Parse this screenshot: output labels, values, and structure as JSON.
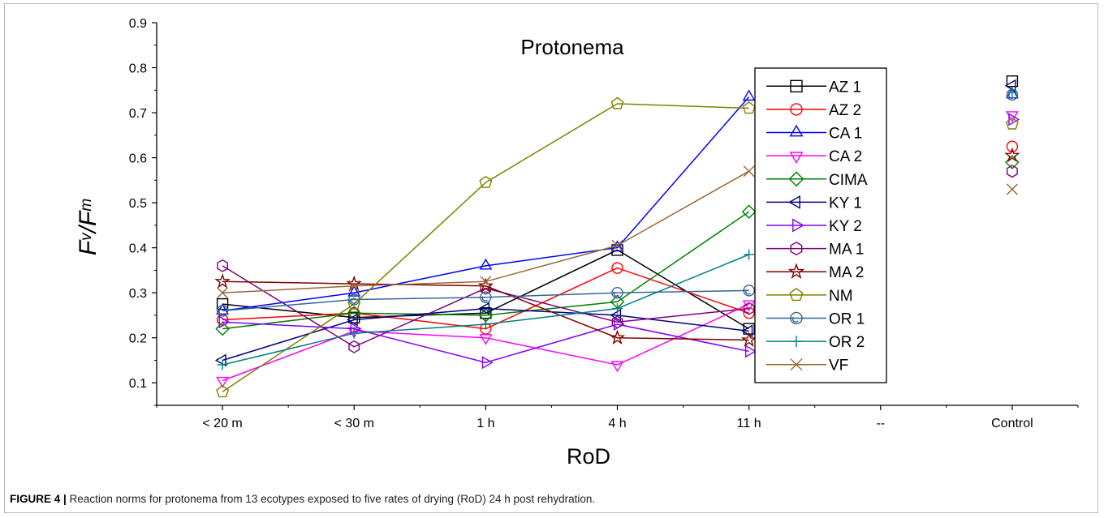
{
  "figure": {
    "caption_label": "FIGURE 4 |",
    "caption_text": " Reaction norms for protonema from 13 ecotypes exposed to five rates of drying (RoD) 24 h post rehydration."
  },
  "chart_data": {
    "type": "line",
    "title": "Protonema",
    "xlabel": "RoD",
    "ylabel_parts": [
      "F",
      "v",
      "/F",
      "m"
    ],
    "categories": [
      "< 20 m",
      "< 30 m",
      "1 h",
      "4 h",
      "11 h",
      "--",
      "Control"
    ],
    "ylim": [
      0.05,
      0.9
    ],
    "yticks": [
      "0.1",
      "0.2",
      "0.3",
      "0.4",
      "0.5",
      "0.6",
      "0.7",
      "0.8",
      "0.9"
    ],
    "grid": false,
    "legend_position": "right",
    "series": [
      {
        "name": "AZ 1",
        "color": "#000000",
        "marker": "square",
        "values": [
          0.275,
          0.245,
          0.255,
          0.395,
          0.22,
          null,
          0.77
        ]
      },
      {
        "name": "AZ 2",
        "color": "#ff0000",
        "marker": "circle",
        "values": [
          0.24,
          0.255,
          0.22,
          0.355,
          0.255,
          null,
          0.625
        ]
      },
      {
        "name": "CA 1",
        "color": "#0000ff",
        "marker": "triangle-up",
        "values": [
          0.26,
          0.3,
          0.36,
          0.4,
          0.735,
          null,
          0.74
        ]
      },
      {
        "name": "CA 2",
        "color": "#ff00ff",
        "marker": "triangle-down",
        "values": [
          0.105,
          0.215,
          0.2,
          0.14,
          0.275,
          null,
          0.695
        ]
      },
      {
        "name": "CIMA",
        "color": "#008000",
        "marker": "diamond",
        "values": [
          0.22,
          0.255,
          0.25,
          0.28,
          0.48,
          null,
          0.59
        ]
      },
      {
        "name": "KY 1",
        "color": "#000080",
        "marker": "triangle-left",
        "values": [
          0.15,
          0.24,
          0.265,
          0.25,
          0.215,
          null,
          0.76
        ]
      },
      {
        "name": "KY 2",
        "color": "#8000ff",
        "marker": "triangle-right",
        "values": [
          0.235,
          0.22,
          0.145,
          0.23,
          0.17,
          null,
          0.685
        ]
      },
      {
        "name": "MA 1",
        "color": "#800080",
        "marker": "hexagon",
        "values": [
          0.36,
          0.18,
          0.31,
          0.235,
          0.265,
          null,
          0.57
        ]
      },
      {
        "name": "MA 2",
        "color": "#800000",
        "marker": "star",
        "values": [
          0.325,
          0.32,
          0.315,
          0.2,
          0.195,
          null,
          0.605
        ]
      },
      {
        "name": "NM",
        "color": "#808000",
        "marker": "pentagon",
        "values": [
          0.08,
          0.275,
          0.545,
          0.72,
          0.71,
          null,
          0.675
        ]
      },
      {
        "name": "OR 1",
        "color": "#336699",
        "marker": "circle-dot",
        "values": [
          0.26,
          0.285,
          0.29,
          0.3,
          0.305,
          null,
          0.74
        ]
      },
      {
        "name": "OR 2",
        "color": "#008080",
        "marker": "plus",
        "values": [
          0.14,
          0.21,
          0.23,
          0.265,
          0.385,
          null,
          0.745
        ]
      },
      {
        "name": "VF",
        "color": "#996633",
        "marker": "cross",
        "values": [
          0.3,
          0.315,
          0.325,
          0.405,
          0.57,
          null,
          0.53
        ]
      }
    ]
  }
}
